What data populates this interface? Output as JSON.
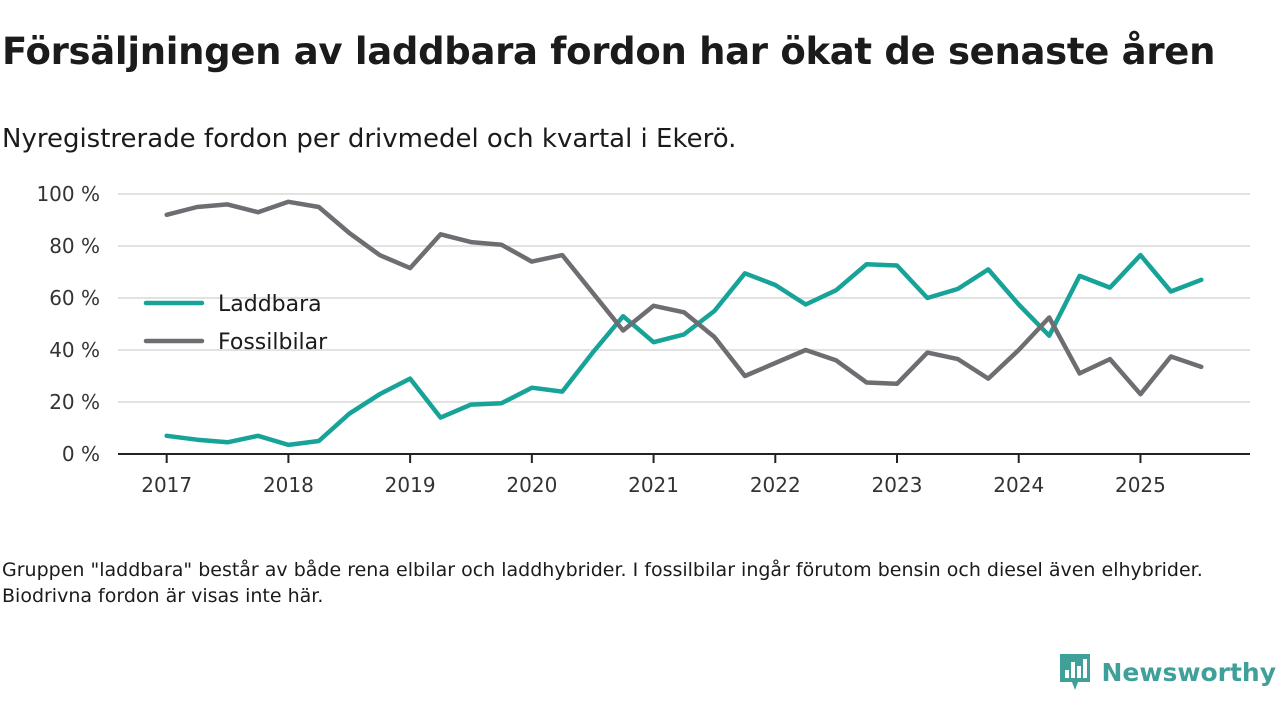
{
  "title": "Försäljningen av laddbara fordon har ökat de senaste åren",
  "subtitle": "Nyregistrerade fordon per drivmedel och kvartal i Ekerö.",
  "note": "Gruppen \"laddbara\" består av både rena elbilar och laddhybrider. I fossilbilar ingår förutom bensin och diesel även elhybrider. Biodrivna fordon är visas inte här.",
  "brand": {
    "name": "Newsworthy",
    "logo_icon": "bar-chart-bubble-icon",
    "color": "#3f9f99"
  },
  "chart_data": {
    "type": "line",
    "title": "Försäljningen av laddbara fordon har ökat de senaste åren",
    "subtitle": "Nyregistrerade fordon per drivmedel och kvartal i Ekerö.",
    "xlabel": "",
    "ylabel": "",
    "x_start": 2017.0,
    "x_step": 0.25,
    "xlim": [
      2016.6,
      2025.9
    ],
    "ylim": [
      0,
      100
    ],
    "yticks": [
      {
        "value": 0,
        "label": "0 %"
      },
      {
        "value": 20,
        "label": "20 %"
      },
      {
        "value": 40,
        "label": "40 %"
      },
      {
        "value": 60,
        "label": "60 %"
      },
      {
        "value": 80,
        "label": "80 %"
      },
      {
        "value": 100,
        "label": "100 %"
      }
    ],
    "xticks": [
      {
        "value": 2017,
        "label": "2017"
      },
      {
        "value": 2018,
        "label": "2018"
      },
      {
        "value": 2019,
        "label": "2019"
      },
      {
        "value": 2020,
        "label": "2020"
      },
      {
        "value": 2021,
        "label": "2021"
      },
      {
        "value": 2022,
        "label": "2022"
      },
      {
        "value": 2023,
        "label": "2023"
      },
      {
        "value": 2024,
        "label": "2024"
      },
      {
        "value": 2025,
        "label": "2025"
      }
    ],
    "grid": true,
    "legend_position": "left-middle",
    "series": [
      {
        "name": "Laddbara",
        "color": "#17a398",
        "values": [
          7,
          5.5,
          4.5,
          7,
          3.5,
          5,
          15.5,
          23,
          29,
          14,
          19,
          19.5,
          25.5,
          24,
          39,
          53,
          43,
          46,
          55,
          69.5,
          65,
          57.5,
          63,
          73,
          72.5,
          60,
          63.5,
          71,
          57.5,
          45.5,
          68.5,
          64,
          76.5,
          62.5,
          67
        ]
      },
      {
        "name": "Fossilbilar",
        "color": "#6e6d72",
        "values": [
          92,
          95,
          96,
          93,
          97,
          95,
          85,
          76.5,
          71.5,
          84.5,
          81.5,
          80.5,
          74,
          76.5,
          62,
          47.5,
          57,
          54.5,
          45,
          30,
          35,
          40,
          36,
          27.5,
          27,
          39,
          36.5,
          29,
          40,
          52.5,
          31,
          36.5,
          23,
          37.5,
          33.5
        ]
      }
    ]
  }
}
